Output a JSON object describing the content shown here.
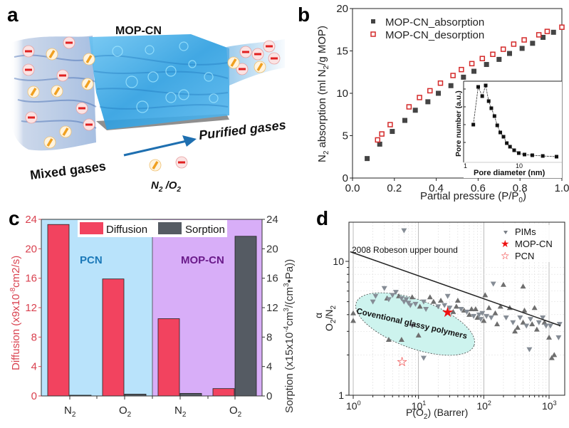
{
  "panels": {
    "a": {
      "label": "a",
      "membrane_label": "MOP-CN",
      "input_label": "Mixed gases",
      "output_label": "Purified gases",
      "gas_label_n2": "N",
      "gas_label_sub": "2",
      "gas_label_sep": " /O",
      "gas_label_sub2": "2",
      "colors": {
        "membrane": "#3aa6e0",
        "n2_molecule": "#f0a020",
        "o2_molecule": "#e02020",
        "arrow": "#1e6fb0"
      }
    },
    "b": {
      "label": "b"
    },
    "c": {
      "label": "c",
      "region_left": "PCN",
      "region_right": "MOP-CN"
    },
    "d": {
      "label": "d",
      "upper_bound_label": "2008 Robeson upper bound",
      "ellipse_label": "Coventional glassy polymers"
    }
  },
  "chart_data": [
    {
      "id": "b",
      "type": "scatter",
      "title": "",
      "xlabel": "Partial pressure (P/P0)",
      "ylabel": "N2 absorption (ml N2/g MOP)",
      "xlim": [
        0,
        1.0
      ],
      "ylim": [
        0,
        20
      ],
      "xticks": [
        "0.0",
        "0.2",
        "0.4",
        "0.6",
        "0.8",
        "1.0"
      ],
      "yticks": [
        "0",
        "5",
        "10",
        "15",
        "20"
      ],
      "legend_position": "top-left",
      "series": [
        {
          "name": "MOP-CN_absorption",
          "marker": "filled-square",
          "color": "#444444",
          "x": [
            0.07,
            0.13,
            0.19,
            0.25,
            0.3,
            0.36,
            0.41,
            0.47,
            0.53,
            0.58,
            0.64,
            0.7,
            0.75,
            0.81,
            0.86,
            0.91,
            0.96
          ],
          "y": [
            2.3,
            4.0,
            5.5,
            6.8,
            8.0,
            9.0,
            10.0,
            10.9,
            11.9,
            12.6,
            13.4,
            14.0,
            14.7,
            15.3,
            15.9,
            16.6,
            17.2
          ]
        },
        {
          "name": "MOP-CN_desorption",
          "marker": "open-square",
          "color": "#d42a2a",
          "x": [
            0.12,
            0.14,
            0.18,
            0.27,
            0.32,
            0.37,
            0.42,
            0.48,
            0.52,
            0.57,
            0.62,
            0.67,
            0.72,
            0.77,
            0.82,
            0.89,
            0.93,
            1.0
          ],
          "y": [
            4.5,
            5.2,
            6.3,
            8.4,
            9.5,
            10.3,
            11.2,
            12.1,
            12.8,
            13.5,
            14.1,
            14.6,
            15.2,
            15.8,
            16.3,
            16.9,
            17.3,
            17.8
          ]
        }
      ],
      "inset": {
        "type": "line",
        "xlabel": "Pore diameter (nm)",
        "ylabel": "Pore number (a.u.)",
        "xscale": "log",
        "xlim": [
          1,
          50
        ],
        "xticks": [
          "1",
          "10"
        ],
        "series": [
          {
            "name": "pore distribution",
            "color": "#111111",
            "x": [
              1.3,
              1.6,
              1.9,
              2.2,
              2.5,
              2.8,
              3.2,
              3.6,
              4.1,
              4.7,
              5.4,
              6.2,
              7.4,
              9.0,
              11.5,
              16,
              25,
              45
            ],
            "y": [
              0.45,
              0.98,
              0.85,
              1.0,
              0.78,
              0.68,
              0.57,
              0.44,
              0.34,
              0.28,
              0.19,
              0.14,
              0.09,
              0.05,
              0.03,
              0.02,
              0.01,
              0.0
            ]
          }
        ]
      }
    },
    {
      "id": "c",
      "type": "bar",
      "title": "",
      "categories": [
        "N2",
        "O2",
        "N2",
        "O2"
      ],
      "category_groups": [
        "PCN",
        "PCN",
        "MOP-CN",
        "MOP-CN"
      ],
      "ylabel": "Diffusion (x9x10^-8cm2/s)",
      "ylabel_right": "Sorption (x15x10^-4cm^3/(cm^3•Pa))",
      "ylim": [
        0,
        24
      ],
      "ylim_right": [
        0,
        24
      ],
      "yticks": [
        "0",
        "4",
        "8",
        "12",
        "16",
        "20",
        "24"
      ],
      "legend_position": "top-center",
      "series": [
        {
          "name": "Diffusion",
          "color": "#f2435f",
          "values": [
            23.3,
            15.9,
            10.5,
            1.0
          ]
        },
        {
          "name": "Sorption",
          "color": "#555b63",
          "values": [
            0.1,
            0.25,
            0.35,
            21.7
          ]
        }
      ],
      "background_colors": {
        "PCN": "#b9e3fb",
        "MOP-CN": "#d8aef8"
      },
      "axis_color_left": "#d9414f",
      "region_text_colors": {
        "PCN": "#1a78b8",
        "MOP-CN": "#6a1a8a"
      }
    },
    {
      "id": "d",
      "type": "scatter",
      "title": "",
      "xlabel": "P(O2) (Barrer)",
      "ylabel": "α O2/N2",
      "xscale": "log",
      "yscale": "log",
      "xlim": [
        0.9,
        1700
      ],
      "ylim": [
        1,
        22
      ],
      "xticks": [
        "10^0",
        "10^1",
        "10^2",
        "10^3"
      ],
      "yticks": [
        "1",
        "10"
      ],
      "legend_position": "top-right",
      "robeson_line": {
        "x": [
          0.9,
          1500
        ],
        "y": [
          11.8,
          3.3
        ]
      },
      "series": [
        {
          "name": "PIMs",
          "marker": "triangle",
          "color": "#7a7f87",
          "points": [
            [
              1.0,
              4.1,
              "u"
            ],
            [
              1.0,
              3.6,
              "u"
            ],
            [
              2.0,
              5.0,
              "d"
            ],
            [
              2.2,
              5.5,
              "d"
            ],
            [
              3.0,
              6.3,
              "d"
            ],
            [
              3.3,
              5.3,
              "u"
            ],
            [
              3.5,
              5.2,
              "d"
            ],
            [
              4.0,
              5.6,
              "d"
            ],
            [
              4.5,
              5.9,
              "d"
            ],
            [
              5.0,
              5.5,
              "u"
            ],
            [
              5.5,
              5.3,
              "d"
            ],
            [
              6.0,
              5.0,
              "d"
            ],
            [
              6.5,
              5.2,
              "d"
            ],
            [
              7.0,
              4.9,
              "d"
            ],
            [
              7.5,
              4.7,
              "d"
            ],
            [
              8.0,
              5.4,
              "u"
            ],
            [
              9.0,
              4.8,
              "d"
            ],
            [
              10.5,
              4.6,
              "u"
            ],
            [
              12,
              5.0,
              "d"
            ],
            [
              13,
              4.4,
              "d"
            ],
            [
              15,
              5.4,
              "u"
            ],
            [
              17,
              5.0,
              "u"
            ],
            [
              20,
              4.6,
              "d"
            ],
            [
              22,
              5.1,
              "u"
            ],
            [
              25,
              4.7,
              "d"
            ],
            [
              28,
              5.5,
              "d"
            ],
            [
              30,
              4.5,
              "d"
            ],
            [
              34,
              4.2,
              "u"
            ],
            [
              38,
              4.6,
              "u"
            ],
            [
              40,
              5.1,
              "u"
            ],
            [
              45,
              4.4,
              "d"
            ],
            [
              50,
              4.3,
              "u"
            ],
            [
              55,
              4.2,
              "d"
            ],
            [
              60,
              4.0,
              "u"
            ],
            [
              65,
              4.4,
              "u"
            ],
            [
              70,
              3.9,
              "d"
            ],
            [
              75,
              4.4,
              "u"
            ],
            [
              80,
              3.8,
              "u"
            ],
            [
              85,
              4.0,
              "d"
            ],
            [
              90,
              3.7,
              "d"
            ],
            [
              95,
              4.1,
              "d"
            ],
            [
              100,
              3.6,
              "u"
            ],
            [
              105,
              5.6,
              "u"
            ],
            [
              110,
              3.9,
              "d"
            ],
            [
              120,
              4.5,
              "u"
            ],
            [
              130,
              3.8,
              "d"
            ],
            [
              140,
              6.8,
              "d"
            ],
            [
              150,
              4.1,
              "u"
            ],
            [
              160,
              3.4,
              "u"
            ],
            [
              180,
              4.6,
              "u"
            ],
            [
              200,
              6.7,
              "u"
            ],
            [
              220,
              3.8,
              "d"
            ],
            [
              250,
              4.5,
              "u"
            ],
            [
              280,
              3.5,
              "d"
            ],
            [
              300,
              3.0,
              "u"
            ],
            [
              330,
              3.2,
              "u"
            ],
            [
              360,
              3.8,
              "d"
            ],
            [
              400,
              3.5,
              "u"
            ],
            [
              400,
              6.5,
              "u"
            ],
            [
              420,
              4.3,
              "u"
            ],
            [
              450,
              3.3,
              "d"
            ],
            [
              500,
              2.2,
              "d"
            ],
            [
              520,
              3.7,
              "d"
            ],
            [
              550,
              3.4,
              "u"
            ],
            [
              600,
              4.5,
              "u"
            ],
            [
              650,
              3.1,
              "u"
            ],
            [
              700,
              3.5,
              "d"
            ],
            [
              800,
              3.8,
              "d"
            ],
            [
              850,
              3.5,
              "u"
            ],
            [
              900,
              3.3,
              "d"
            ],
            [
              1000,
              2.7,
              "u"
            ],
            [
              1050,
              3.3,
              "d"
            ],
            [
              1100,
              1.9,
              "u"
            ],
            [
              1200,
              2.0,
              "u"
            ],
            [
              1400,
              2.7,
              "d"
            ],
            [
              1450,
              3.4,
              "d"
            ],
            [
              6.0,
              17.0,
              "d"
            ],
            [
              5.5,
              2.6,
              "u"
            ],
            [
              3.5,
              2.6,
              "u"
            ],
            [
              12,
              1.9,
              "d"
            ],
            [
              10,
              2.8,
              "u"
            ],
            [
              8,
              3.3,
              "d"
            ]
          ]
        },
        {
          "name": "MOP-CN",
          "marker": "filled-star",
          "color": "#ee1111",
          "points": [
            [
              28,
              4.2
            ]
          ]
        },
        {
          "name": "PCN",
          "marker": "open-star",
          "color": "#ee1111",
          "points": [
            [
              5.6,
              1.8
            ]
          ]
        }
      ],
      "ellipse_color": "#cdf3ee"
    }
  ]
}
